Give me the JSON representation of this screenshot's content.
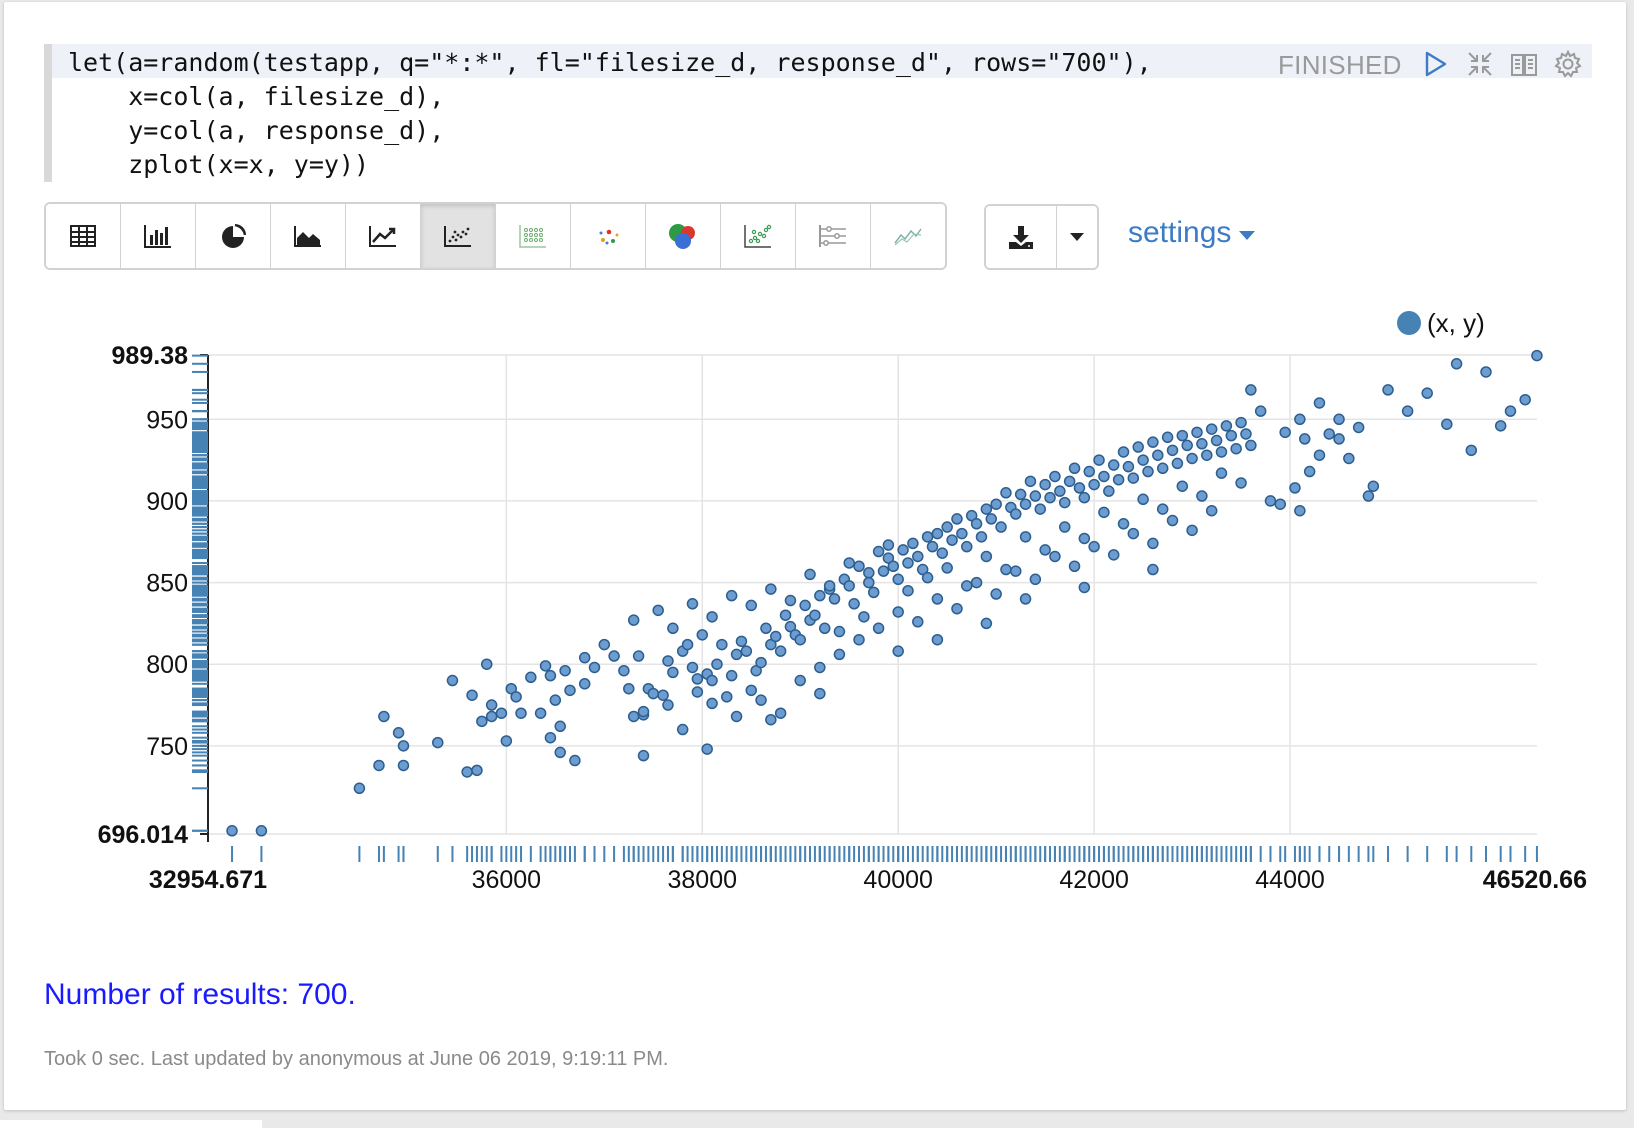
{
  "paragraph": {
    "code_lines": [
      "let(a=random(testapp, q=\"*:*\", fl=\"filesize_d, response_d\", rows=\"700\"),",
      "    x=col(a, filesize_d),",
      "    y=col(a, response_d),",
      "    zplot(x=x, y=y))"
    ],
    "status": "FINISHED",
    "controls": [
      "run-icon",
      "collapse-icon",
      "book-icon",
      "gear-icon"
    ]
  },
  "toolbar": {
    "viz_buttons": [
      {
        "name": "table",
        "icon": "table-icon",
        "active": false
      },
      {
        "name": "bar",
        "icon": "bar-chart-icon",
        "active": false
      },
      {
        "name": "pie",
        "icon": "pie-chart-icon",
        "active": false
      },
      {
        "name": "area",
        "icon": "area-chart-icon",
        "active": false
      },
      {
        "name": "line",
        "icon": "line-chart-icon",
        "active": false
      },
      {
        "name": "scatter",
        "icon": "scatter-chart-icon",
        "active": true
      },
      {
        "name": "heatmap",
        "icon": "heatmap-icon",
        "active": false
      },
      {
        "name": "bubble-dots",
        "icon": "colored-dots-icon",
        "active": false
      },
      {
        "name": "venn",
        "icon": "bubble-chart-icon",
        "active": false
      },
      {
        "name": "scatter-green",
        "icon": "green-scatter-icon",
        "active": false
      },
      {
        "name": "range",
        "icon": "range-chart-icon",
        "active": false
      },
      {
        "name": "trend",
        "icon": "trend-line-icon",
        "active": false
      }
    ],
    "download_icon": "download-icon",
    "settings_label": "settings"
  },
  "chart_data": {
    "type": "scatter",
    "title": "",
    "xlabel": "",
    "ylabel": "",
    "xlim": [
      32954.671,
      46520.66
    ],
    "ylim": [
      696.014,
      989.38
    ],
    "x_ticks": [
      "36000",
      "38000",
      "40000",
      "42000",
      "44000"
    ],
    "y_ticks": [
      "950",
      "900",
      "850",
      "800",
      "750"
    ],
    "x_min_label": "32954.671",
    "x_max_label": "46520.66",
    "y_min_label": "696.014",
    "y_max_label": "989.38",
    "grid": true,
    "rug_plots": true,
    "legend": {
      "placement": "top-right",
      "entries": [
        "(x, y)"
      ]
    },
    "series": [
      {
        "name": "(x, y)",
        "color": "#4682b4",
        "points": [
          [
            33200,
            698
          ],
          [
            33500,
            698
          ],
          [
            34500,
            724
          ],
          [
            34700,
            738
          ],
          [
            34750,
            768
          ],
          [
            34900,
            758
          ],
          [
            34950,
            750
          ],
          [
            34950,
            738
          ],
          [
            35300,
            752
          ],
          [
            35450,
            790
          ],
          [
            35600,
            734
          ],
          [
            35650,
            781
          ],
          [
            35700,
            735
          ],
          [
            35750,
            765
          ],
          [
            35800,
            800
          ],
          [
            35850,
            775
          ],
          [
            35850,
            768
          ],
          [
            35950,
            770
          ],
          [
            36000,
            753
          ],
          [
            36050,
            785
          ],
          [
            36100,
            780
          ],
          [
            36150,
            770
          ],
          [
            36250,
            792
          ],
          [
            36350,
            770
          ],
          [
            36400,
            799
          ],
          [
            36450,
            793
          ],
          [
            36450,
            755
          ],
          [
            36500,
            778
          ],
          [
            36550,
            746
          ],
          [
            36550,
            762
          ],
          [
            36600,
            796
          ],
          [
            36650,
            784
          ],
          [
            36700,
            741
          ],
          [
            36800,
            788
          ],
          [
            36900,
            798
          ],
          [
            37100,
            805
          ],
          [
            37200,
            796
          ],
          [
            37250,
            785
          ],
          [
            37300,
            768
          ],
          [
            37350,
            805
          ],
          [
            37400,
            769
          ],
          [
            37400,
            771
          ],
          [
            37450,
            785
          ],
          [
            37500,
            782
          ],
          [
            37600,
            781
          ],
          [
            37650,
            802
          ],
          [
            37650,
            775
          ],
          [
            37700,
            795
          ],
          [
            37800,
            808
          ],
          [
            37850,
            812
          ],
          [
            37900,
            798
          ],
          [
            37950,
            791
          ],
          [
            38000,
            818
          ],
          [
            38050,
            794
          ],
          [
            38100,
            790
          ],
          [
            37950,
            783
          ],
          [
            38100,
            776
          ],
          [
            38150,
            800
          ],
          [
            38200,
            812
          ],
          [
            38250,
            780
          ],
          [
            38300,
            793
          ],
          [
            38350,
            806
          ],
          [
            38400,
            814
          ],
          [
            38450,
            808
          ],
          [
            38500,
            784
          ],
          [
            38550,
            796
          ],
          [
            38600,
            801
          ],
          [
            38650,
            822
          ],
          [
            38700,
            812
          ],
          [
            38750,
            817
          ],
          [
            38800,
            808
          ],
          [
            38850,
            830
          ],
          [
            38900,
            823
          ],
          [
            38950,
            818
          ],
          [
            39000,
            815
          ],
          [
            39050,
            836
          ],
          [
            39100,
            827
          ],
          [
            39150,
            830
          ],
          [
            39200,
            842
          ],
          [
            39250,
            822
          ],
          [
            39300,
            846
          ],
          [
            39350,
            840
          ],
          [
            39400,
            820
          ],
          [
            39450,
            852
          ],
          [
            39500,
            848
          ],
          [
            39550,
            837
          ],
          [
            39600,
            860
          ],
          [
            39650,
            829
          ],
          [
            39700,
            850
          ],
          [
            39750,
            844
          ],
          [
            39800,
            869
          ],
          [
            39850,
            857
          ],
          [
            39900,
            865
          ],
          [
            39950,
            860
          ],
          [
            40000,
            852
          ],
          [
            40050,
            870
          ],
          [
            40100,
            862
          ],
          [
            40150,
            874
          ],
          [
            40200,
            866
          ],
          [
            40250,
            858
          ],
          [
            40300,
            878
          ],
          [
            40350,
            872
          ],
          [
            40400,
            880
          ],
          [
            40450,
            868
          ],
          [
            40500,
            884
          ],
          [
            40550,
            876
          ],
          [
            40600,
            889
          ],
          [
            40650,
            880
          ],
          [
            40700,
            872
          ],
          [
            40750,
            891
          ],
          [
            40800,
            886
          ],
          [
            40850,
            878
          ],
          [
            40900,
            895
          ],
          [
            40950,
            889
          ],
          [
            41000,
            898
          ],
          [
            41050,
            884
          ],
          [
            41100,
            905
          ],
          [
            41150,
            896
          ],
          [
            41200,
            892
          ],
          [
            41250,
            904
          ],
          [
            41300,
            898
          ],
          [
            41350,
            912
          ],
          [
            41400,
            903
          ],
          [
            41450,
            895
          ],
          [
            41500,
            910
          ],
          [
            41550,
            902
          ],
          [
            41600,
            915
          ],
          [
            41650,
            906
          ],
          [
            41700,
            899
          ],
          [
            41750,
            912
          ],
          [
            41800,
            920
          ],
          [
            41850,
            908
          ],
          [
            41900,
            902
          ],
          [
            41950,
            918
          ],
          [
            42000,
            910
          ],
          [
            42050,
            925
          ],
          [
            42100,
            915
          ],
          [
            42150,
            906
          ],
          [
            42200,
            922
          ],
          [
            42250,
            913
          ],
          [
            42300,
            930
          ],
          [
            42350,
            921
          ],
          [
            42400,
            914
          ],
          [
            42450,
            933
          ],
          [
            42500,
            925
          ],
          [
            42550,
            918
          ],
          [
            42600,
            936
          ],
          [
            42650,
            928
          ],
          [
            42700,
            920
          ],
          [
            42750,
            939
          ],
          [
            42800,
            931
          ],
          [
            42850,
            923
          ],
          [
            42900,
            940
          ],
          [
            42950,
            934
          ],
          [
            43000,
            926
          ],
          [
            43050,
            942
          ],
          [
            43100,
            935
          ],
          [
            43150,
            928
          ],
          [
            43200,
            944
          ],
          [
            43250,
            937
          ],
          [
            43300,
            930
          ],
          [
            43350,
            946
          ],
          [
            43400,
            940
          ],
          [
            43450,
            932
          ],
          [
            43500,
            948
          ],
          [
            43550,
            941
          ],
          [
            43600,
            934
          ],
          [
            36800,
            804
          ],
          [
            37000,
            812
          ],
          [
            37300,
            827
          ],
          [
            37550,
            833
          ],
          [
            37700,
            822
          ],
          [
            37900,
            837
          ],
          [
            38100,
            829
          ],
          [
            38300,
            842
          ],
          [
            38500,
            836
          ],
          [
            38700,
            846
          ],
          [
            38900,
            839
          ],
          [
            39100,
            855
          ],
          [
            39300,
            848
          ],
          [
            39500,
            862
          ],
          [
            39700,
            856
          ],
          [
            39900,
            873
          ],
          [
            40100,
            845
          ],
          [
            40300,
            853
          ],
          [
            40500,
            859
          ],
          [
            40700,
            848
          ],
          [
            40900,
            866
          ],
          [
            41100,
            858
          ],
          [
            41300,
            878
          ],
          [
            41500,
            870
          ],
          [
            41700,
            884
          ],
          [
            41900,
            877
          ],
          [
            42100,
            893
          ],
          [
            42300,
            886
          ],
          [
            42500,
            901
          ],
          [
            42700,
            895
          ],
          [
            42900,
            909
          ],
          [
            43100,
            903
          ],
          [
            43300,
            917
          ],
          [
            43500,
            911
          ],
          [
            38600,
            778
          ],
          [
            38800,
            770
          ],
          [
            39000,
            790
          ],
          [
            39200,
            798
          ],
          [
            39400,
            806
          ],
          [
            39600,
            815
          ],
          [
            39800,
            822
          ],
          [
            40000,
            832
          ],
          [
            40200,
            826
          ],
          [
            40400,
            840
          ],
          [
            40600,
            834
          ],
          [
            40800,
            850
          ],
          [
            41000,
            843
          ],
          [
            41200,
            857
          ],
          [
            41400,
            852
          ],
          [
            41600,
            866
          ],
          [
            41800,
            860
          ],
          [
            42000,
            872
          ],
          [
            42200,
            867
          ],
          [
            42400,
            880
          ],
          [
            42600,
            874
          ],
          [
            42800,
            888
          ],
          [
            43000,
            882
          ],
          [
            43200,
            894
          ],
          [
            37400,
            744
          ],
          [
            37800,
            760
          ],
          [
            38050,
            748
          ],
          [
            38350,
            768
          ],
          [
            38700,
            766
          ],
          [
            39200,
            782
          ],
          [
            40000,
            808
          ],
          [
            40400,
            815
          ],
          [
            40900,
            825
          ],
          [
            41300,
            840
          ],
          [
            41900,
            847
          ],
          [
            42600,
            858
          ],
          [
            43800,
            900
          ],
          [
            43900,
            898
          ],
          [
            44100,
            894
          ],
          [
            44200,
            918
          ],
          [
            44300,
            928
          ],
          [
            44500,
            938
          ],
          [
            44600,
            926
          ],
          [
            44700,
            945
          ],
          [
            44800,
            903
          ],
          [
            44850,
            909
          ],
          [
            45000,
            968
          ],
          [
            45200,
            955
          ],
          [
            45400,
            966
          ],
          [
            45600,
            947
          ],
          [
            45700,
            984
          ],
          [
            45850,
            931
          ],
          [
            46000,
            979
          ],
          [
            46150,
            946
          ],
          [
            46250,
            955
          ],
          [
            46400,
            962
          ],
          [
            46520,
            989
          ],
          [
            44300,
            960
          ],
          [
            44500,
            950
          ],
          [
            43700,
            955
          ],
          [
            44100,
            950
          ],
          [
            43950,
            942
          ],
          [
            43600,
            968
          ],
          [
            44150,
            938
          ],
          [
            44400,
            941
          ],
          [
            44050,
            908
          ]
        ]
      }
    ]
  },
  "results_text": "Number of results: 700.",
  "footer_text": "Took 0 sec. Last updated by anonymous at June 06 2019, 9:19:11 PM."
}
